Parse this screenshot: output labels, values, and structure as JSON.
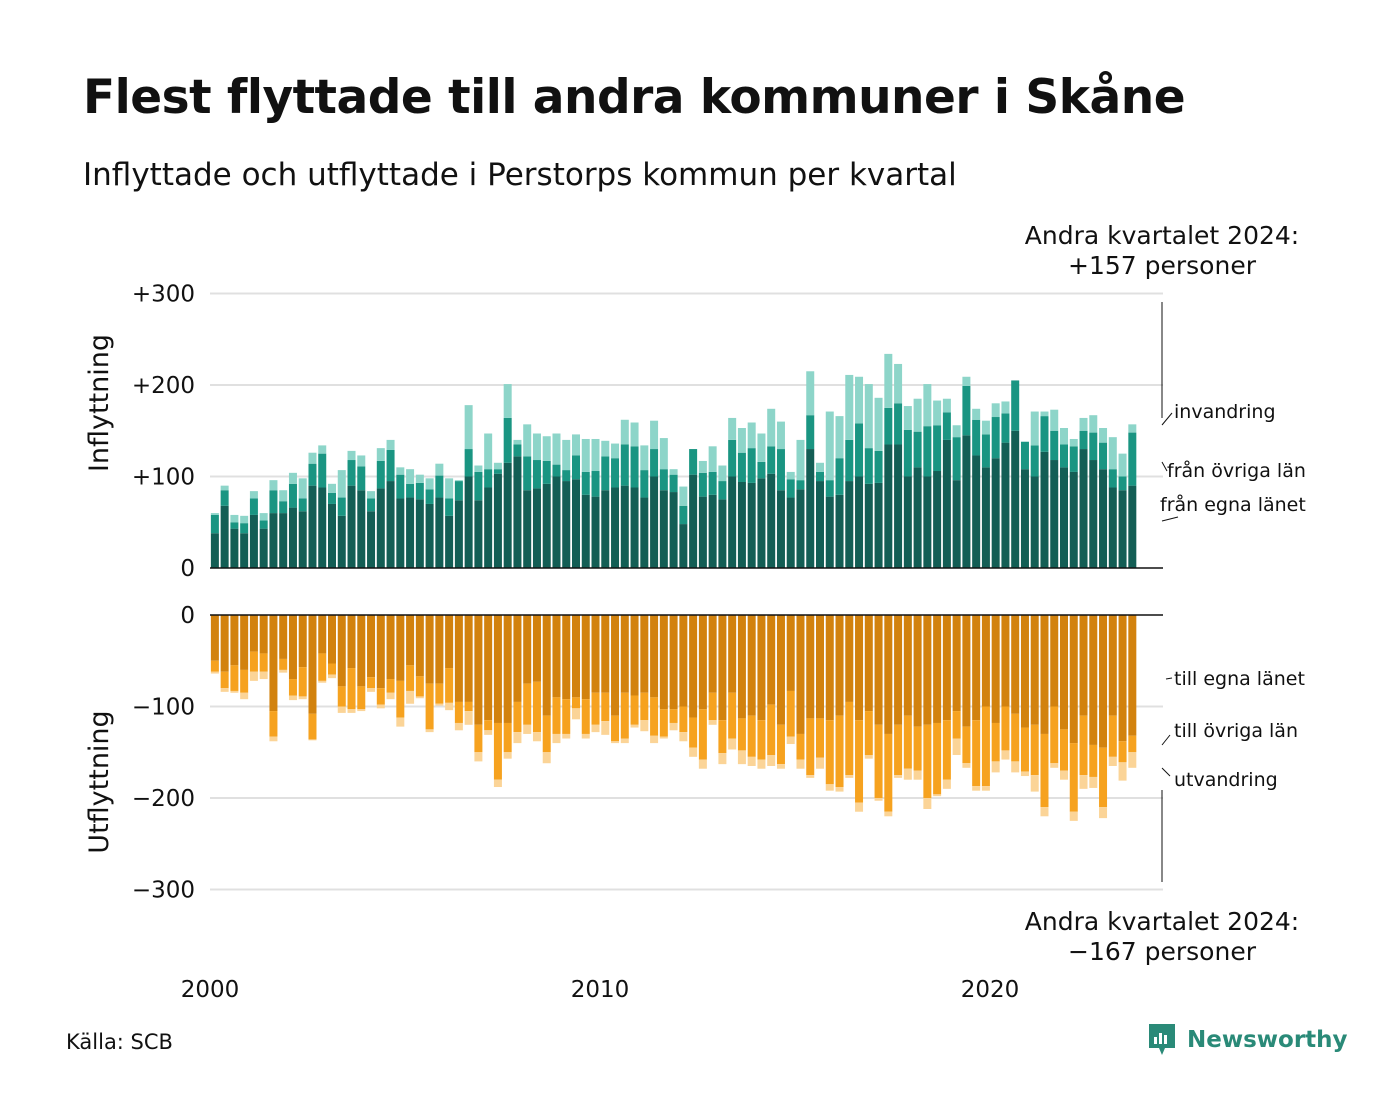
{
  "title": "Flest flyttade till andra kommuner i Skåne",
  "subtitle": "Inflyttade och utflyttade i Perstorps kommun per kvartal",
  "source": "Källa: SCB",
  "logo_text": "Newsworthy",
  "colors": {
    "in_egna": "#135e55",
    "in_ovriga": "#1a9582",
    "in_invandring": "#8dd5c9",
    "ut_egna": "#d2820e",
    "ut_ovriga": "#f6a21f",
    "ut_utvandring": "#fbd497",
    "grid": "#e0e0e0",
    "brand": "#2a8a78"
  },
  "annotation_top": {
    "line1": "Andra kvartalet 2024:",
    "line2": "+157 personer"
  },
  "annotation_bottom": {
    "line1": "Andra kvartalet 2024:",
    "line2": "−167 personer"
  },
  "chart_data": {
    "type": "bar",
    "stacked": true,
    "x_start": "2000 Q1",
    "frequency": "quarterly",
    "x_ticks": [
      "2000",
      "2010",
      "2020"
    ],
    "panels": [
      {
        "name": "Inflyttning",
        "ylabel": "Inflyttning",
        "ylim": [
          0,
          300
        ],
        "y_ticks": [
          "0",
          "+100",
          "+200",
          "+300"
        ],
        "series": [
          {
            "name": "från egna länet",
            "values": [
              38,
              68,
              43,
              38,
              58,
              43,
              60,
              60,
              66,
              62,
              90,
              88,
              70,
              57,
              90,
              85,
              62,
              87,
              95,
              76,
              77,
              75,
              70,
              77,
              57,
              74,
              100,
              74,
              88,
              103,
              115,
              122,
              85,
              87,
              92,
              100,
              95,
              97,
              80,
              78,
              85,
              88,
              90,
              88,
              77,
              100,
              85,
              83,
              48,
              102,
              78,
              80,
              75,
              100,
              94,
              93,
              98,
              103,
              85,
              77,
              86,
              130,
              95,
              78,
              80,
              95,
              100,
              92,
              93,
              135,
              135,
              100,
              110,
              100,
              106,
              140,
              96,
              145,
              123,
              110,
              120,
              137,
              150,
              108,
              100,
              127,
              118,
              110,
              105,
              130,
              118,
              108,
              88,
              85,
              90
            ]
          },
          {
            "name": "från övriga län",
            "values": [
              20,
              17,
              7,
              11,
              18,
              9,
              25,
              13,
              26,
              14,
              24,
              37,
              12,
              20,
              28,
              26,
              14,
              30,
              34,
              26,
              15,
              18,
              16,
              24,
              19,
              21,
              30,
              31,
              20,
              5,
              49,
              13,
              37,
              31,
              25,
              13,
              12,
              26,
              25,
              28,
              37,
              32,
              45,
              45,
              30,
              30,
              23,
              19,
              20,
              28,
              26,
              25,
              20,
              40,
              32,
              38,
              18,
              30,
              45,
              20,
              10,
              37,
              10,
              18,
              40,
              45,
              58,
              39,
              35,
              40,
              45,
              51,
              39,
              55,
              50,
              30,
              47,
              54,
              39,
              36,
              45,
              32,
              55,
              30,
              34,
              39,
              32,
              25,
              28,
              20,
              30,
              29,
              20,
              15,
              58
            ]
          },
          {
            "name": "invandring",
            "values": [
              2,
              5,
              8,
              8,
              8,
              8,
              11,
              12,
              12,
              22,
              12,
              9,
              10,
              30,
              10,
              12,
              8,
              14,
              11,
              8,
              16,
              9,
              12,
              13,
              22,
              1,
              48,
              7,
              39,
              7,
              37,
              5,
              35,
              29,
              27,
              34,
              33,
              23,
              36,
              35,
              17,
              16,
              27,
              26,
              27,
              31,
              34,
              6,
              21,
              0,
              13,
              28,
              17,
              24,
              27,
              28,
              31,
              41,
              30,
              8,
              44,
              48,
              10,
              75,
              46,
              71,
              51,
              70,
              58,
              59,
              43,
              26,
              36,
              46,
              27,
              15,
              13,
              10,
              12,
              15,
              15,
              13,
              0,
              0,
              37,
              5,
              23,
              18,
              8,
              14,
              19,
              16,
              35,
              25,
              9
            ]
          }
        ]
      },
      {
        "name": "Utflyttning",
        "ylabel": "Utflyttning",
        "ylim": [
          -300,
          0
        ],
        "y_ticks": [
          "0",
          "−100",
          "−200",
          "−300"
        ],
        "series": [
          {
            "name": "till egna länet",
            "values": [
              -50,
              -62,
              -55,
              -60,
              -40,
              -42,
              -105,
              -48,
              -70,
              -57,
              -108,
              -42,
              -53,
              -78,
              -58,
              -78,
              -68,
              -80,
              -70,
              -72,
              -55,
              -67,
              -75,
              -75,
              -58,
              -95,
              -95,
              -120,
              -115,
              -118,
              -118,
              -95,
              -75,
              -73,
              -110,
              -90,
              -92,
              -90,
              -92,
              -85,
              -85,
              -110,
              -85,
              -88,
              -85,
              -90,
              -103,
              -103,
              -100,
              -112,
              -103,
              -85,
              -115,
              -85,
              -113,
              -110,
              -115,
              -98,
              -120,
              -83,
              -130,
              -113,
              -113,
              -115,
              -110,
              -95,
              -115,
              -105,
              -120,
              -130,
              -120,
              -110,
              -122,
              -120,
              -118,
              -115,
              -105,
              -122,
              -115,
              -100,
              -118,
              -100,
              -108,
              -123,
              -120,
              -130,
              -100,
              -125,
              -140,
              -110,
              -142,
              -145,
              -110,
              -138,
              -132
            ]
          },
          {
            "name": "till övriga län",
            "values": [
              -12,
              -18,
              -28,
              -25,
              -22,
              -20,
              -28,
              -12,
              -18,
              -32,
              -28,
              -30,
              -12,
              -22,
              -45,
              -25,
              -12,
              -18,
              -15,
              -40,
              -28,
              -22,
              -50,
              -22,
              -38,
              -23,
              -10,
              -30,
              -11,
              -62,
              -32,
              -33,
              -45,
              -55,
              -40,
              -40,
              -38,
              -12,
              -38,
              -35,
              -31,
              -28,
              -50,
              -32,
              -30,
              -42,
              -30,
              -15,
              -28,
              -33,
              -55,
              -30,
              -36,
              -50,
              -35,
              -45,
              -43,
              -55,
              -43,
              -50,
              -28,
              -62,
              -43,
              -70,
              -78,
              -80,
              -90,
              -48,
              -80,
              -85,
              -55,
              -58,
              -48,
              -80,
              -78,
              -65,
              -30,
              -40,
              -72,
              -87,
              -42,
              -48,
              -52,
              -48,
              -55,
              -80,
              -62,
              -45,
              -75,
              -65,
              -35,
              -65,
              -45,
              -23,
              -18
            ]
          },
          {
            "name": "utvandring",
            "values": [
              -2,
              -4,
              -2,
              -7,
              -10,
              -8,
              -5,
              -3,
              -5,
              -3,
              -1,
              -2,
              -4,
              -7,
              -4,
              -2,
              -4,
              -4,
              -7,
              -10,
              -14,
              -2,
              -3,
              -2,
              -8,
              -8,
              -15,
              -10,
              -5,
              -8,
              -7,
              -12,
              -10,
              -10,
              -12,
              -10,
              -5,
              -12,
              -5,
              -8,
              -15,
              -2,
              -5,
              -3,
              -12,
              -8,
              -2,
              -8,
              -10,
              -10,
              -10,
              -5,
              -12,
              -12,
              -15,
              -10,
              -10,
              -12,
              -5,
              -8,
              -10,
              -3,
              -12,
              -7,
              -5,
              -3,
              -10,
              -4,
              -3,
              -5,
              -3,
              -12,
              -10,
              -12,
              -2,
              -10,
              -18,
              -5,
              -5,
              -5,
              -12,
              -10,
              -12,
              -5,
              -18,
              -10,
              -5,
              -10,
              -10,
              -15,
              -12,
              -12,
              -10,
              -20,
              -17
            ]
          }
        ]
      }
    ]
  }
}
